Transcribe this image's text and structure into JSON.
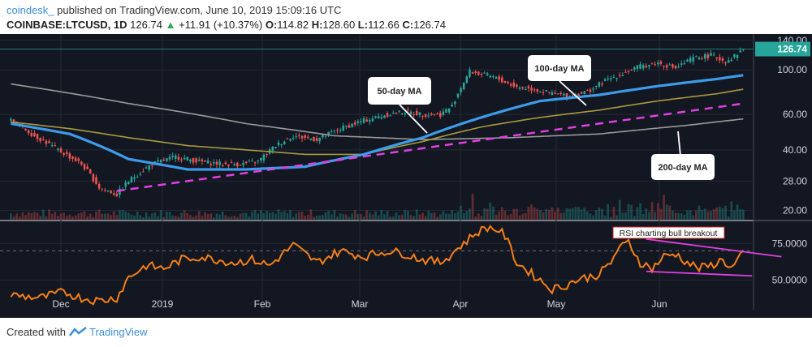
{
  "header": {
    "brand": "coindesk_",
    "published": "published on TradingView.com, June 10, 2019 15:09:16 UTC",
    "symbol": "COINBASE:LTCUSD, 1D",
    "last": "126.74",
    "change": "+11.91 (+10.37%)",
    "o_label": "O:",
    "o_value": "114.82",
    "h_label": "H:",
    "h_value": "128.60",
    "l_label": "L:",
    "l_value": "112.66",
    "c_label": "C:",
    "c_value": "126.74"
  },
  "footer": {
    "created_with": "Created with",
    "tradingview": "TradingView"
  },
  "colors": {
    "background": "#131722",
    "ma50": "#3d9be9",
    "ma100": "#a89a3c",
    "ma200": "#9a9a9a",
    "trendline": "#e040e0",
    "rsi": "#f57f17",
    "up": "#26a69a",
    "down": "#ef5350",
    "price_badge": "#26a69a"
  },
  "chart_data": [
    {
      "type": "candlestick",
      "scale": "log",
      "ylim": [
        18,
        145
      ],
      "yticks": [
        20,
        28,
        40,
        60,
        100,
        140
      ],
      "ytick_labels": [
        "20.00",
        "28.00",
        "40.00",
        "60.00",
        "100.00",
        "140.00"
      ],
      "xlabels": [
        "Dec",
        "2019",
        "Feb",
        "Mar",
        "Apr",
        "May",
        "Jun"
      ],
      "last_price_label": "126.74",
      "close_anchors": [
        [
          0,
          56
        ],
        [
          8,
          47
        ],
        [
          16,
          40
        ],
        [
          24,
          34
        ],
        [
          30,
          26
        ],
        [
          36,
          24
        ],
        [
          40,
          28
        ],
        [
          48,
          34
        ],
        [
          56,
          37
        ],
        [
          64,
          35
        ],
        [
          72,
          34
        ],
        [
          78,
          34
        ],
        [
          84,
          35
        ],
        [
          90,
          42
        ],
        [
          96,
          47
        ],
        [
          104,
          45
        ],
        [
          112,
          51
        ],
        [
          120,
          56
        ],
        [
          128,
          60
        ],
        [
          134,
          62
        ],
        [
          140,
          60
        ],
        [
          146,
          60
        ],
        [
          150,
          66
        ],
        [
          156,
          98
        ],
        [
          164,
          92
        ],
        [
          172,
          82
        ],
        [
          178,
          80
        ],
        [
          184,
          76
        ],
        [
          190,
          74
        ],
        [
          196,
          78
        ],
        [
          202,
          88
        ],
        [
          208,
          96
        ],
        [
          214,
          104
        ],
        [
          220,
          108
        ],
        [
          226,
          102
        ],
        [
          232,
          114
        ],
        [
          238,
          118
        ],
        [
          243,
          110
        ],
        [
          246,
          117
        ],
        [
          249,
          127
        ]
      ],
      "ma50_anchors": [
        [
          0,
          54
        ],
        [
          20,
          48
        ],
        [
          40,
          36
        ],
        [
          60,
          32
        ],
        [
          80,
          32
        ],
        [
          100,
          33
        ],
        [
          120,
          38
        ],
        [
          140,
          46
        ],
        [
          160,
          58
        ],
        [
          180,
          70
        ],
        [
          200,
          75
        ],
        [
          220,
          83
        ],
        [
          240,
          90
        ],
        [
          249,
          94
        ]
      ],
      "ma100_anchors": [
        [
          0,
          55
        ],
        [
          20,
          51
        ],
        [
          40,
          46
        ],
        [
          60,
          42
        ],
        [
          80,
          40
        ],
        [
          100,
          38
        ],
        [
          120,
          38
        ],
        [
          140,
          44
        ],
        [
          160,
          52
        ],
        [
          180,
          58
        ],
        [
          200,
          63
        ],
        [
          220,
          70
        ],
        [
          240,
          76
        ],
        [
          249,
          80
        ]
      ],
      "ma200_anchors": [
        [
          0,
          85
        ],
        [
          40,
          68
        ],
        [
          80,
          54
        ],
        [
          110,
          47
        ],
        [
          140,
          45
        ],
        [
          170,
          46
        ],
        [
          200,
          48
        ],
        [
          230,
          53
        ],
        [
          249,
          57
        ]
      ],
      "trendline": [
        [
          36,
          25
        ],
        [
          249,
          68
        ]
      ],
      "annotations": [
        "50-day MA",
        "100-day MA",
        "200-day MA"
      ]
    },
    {
      "type": "line",
      "series": [
        {
          "name": "RSI",
          "values_note": ""
        }
      ],
      "ylim": [
        30,
        90
      ],
      "yticks": [
        50,
        75
      ],
      "ytick_labels": [
        "50.0000",
        "75.0000"
      ],
      "reference_line": 70,
      "rsi_anchors": [
        [
          0,
          40
        ],
        [
          10,
          38
        ],
        [
          18,
          42
        ],
        [
          24,
          38
        ],
        [
          30,
          36
        ],
        [
          36,
          38
        ],
        [
          40,
          52
        ],
        [
          46,
          60
        ],
        [
          52,
          58
        ],
        [
          58,
          64
        ],
        [
          64,
          66
        ],
        [
          70,
          64
        ],
        [
          76,
          62
        ],
        [
          82,
          64
        ],
        [
          88,
          60
        ],
        [
          96,
          74
        ],
        [
          104,
          62
        ],
        [
          112,
          70
        ],
        [
          120,
          66
        ],
        [
          128,
          70
        ],
        [
          134,
          68
        ],
        [
          140,
          64
        ],
        [
          146,
          62
        ],
        [
          150,
          68
        ],
        [
          152,
          72
        ],
        [
          154,
          75
        ],
        [
          158,
          82
        ],
        [
          162,
          86
        ],
        [
          166,
          84
        ],
        [
          168,
          80
        ],
        [
          172,
          62
        ],
        [
          176,
          56
        ],
        [
          180,
          50
        ],
        [
          184,
          44
        ],
        [
          188,
          46
        ],
        [
          192,
          50
        ],
        [
          196,
          52
        ],
        [
          200,
          54
        ],
        [
          204,
          62
        ],
        [
          206,
          70
        ],
        [
          210,
          76
        ],
        [
          214,
          62
        ],
        [
          218,
          58
        ],
        [
          222,
          66
        ],
        [
          226,
          68
        ],
        [
          230,
          62
        ],
        [
          234,
          58
        ],
        [
          238,
          60
        ],
        [
          242,
          64
        ],
        [
          245,
          58
        ],
        [
          249,
          68
        ]
      ],
      "resistance_line": [
        [
          216,
          78
        ],
        [
          262,
          66
        ]
      ],
      "support_line": [
        [
          216,
          56
        ],
        [
          252,
          53
        ]
      ],
      "annotation": "RSI charting bull breakout"
    }
  ]
}
